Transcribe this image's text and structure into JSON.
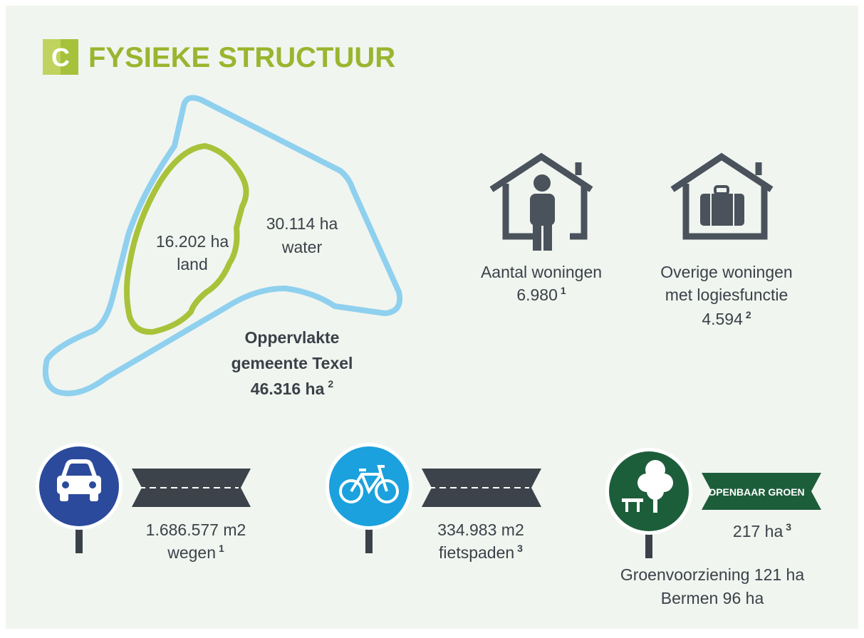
{
  "header": {
    "badge": "C",
    "title": "FYSIEKE STRUCTUUR"
  },
  "map": {
    "land": {
      "value": "16.202 ha",
      "label": "land"
    },
    "water": {
      "value": "30.114 ha",
      "label": "water"
    },
    "total": {
      "lines": [
        "Oppervlakte",
        "gemeente Texel"
      ],
      "value": "46.316 ha",
      "note": "2"
    }
  },
  "housing": [
    {
      "lines": [
        "Aantal woningen"
      ],
      "value": "6.980",
      "note": "1"
    },
    {
      "lines": [
        "Overige woningen",
        "met logiesfunctie"
      ],
      "value": "4.594",
      "note": "2"
    }
  ],
  "infrastructure": [
    {
      "value": "1.686.577 m2",
      "label": "wegen",
      "note": "1"
    },
    {
      "value": "334.983 m2",
      "label": "fietspaden",
      "note": "3"
    },
    {
      "sign": "OPENBAAR GROEN",
      "value": "217 ha",
      "note": "3",
      "details": [
        "Groenvoorziening 121 ha",
        "Bermen 96 ha"
      ]
    }
  ]
}
